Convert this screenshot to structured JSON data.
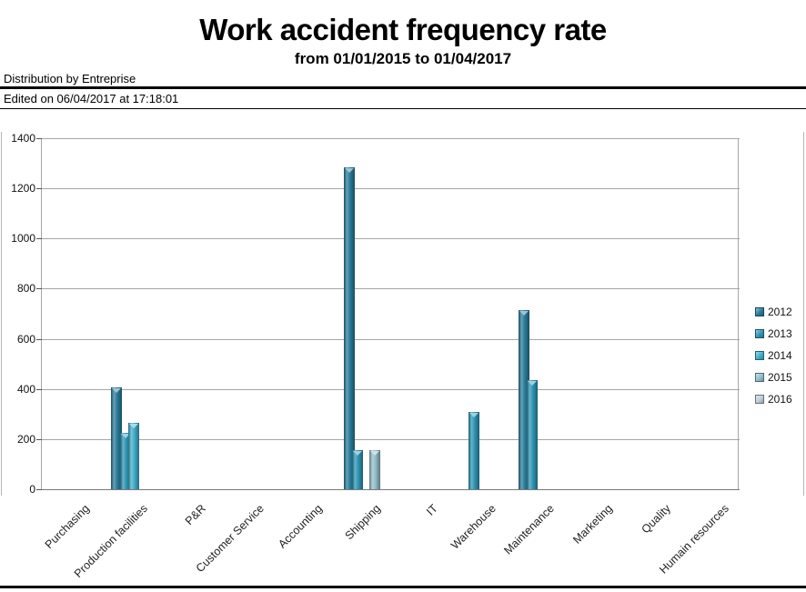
{
  "header": {
    "title": "Work accident frequency rate",
    "subtitle": "from 01/01/2015 to 01/04/2017",
    "distribution_label": "Distribution by Entreprise",
    "edited_label": "Edited on 06/04/2017 at 17:18:01"
  },
  "chart_data": {
    "type": "bar",
    "title": "Work accident frequency rate",
    "subtitle": "from 01/01/2015 to 01/04/2017",
    "categories": [
      "Purchasing",
      "Production facilities",
      "P&R",
      "Customer Service",
      "Accounting",
      "Shipping",
      "IT",
      "Warehouse",
      "Maintenance",
      "Marketing",
      "Quality",
      "Humain resources"
    ],
    "series": [
      {
        "name": "2012",
        "color": "#2a7d9b",
        "values": [
          0,
          405,
          0,
          0,
          0,
          1285,
          0,
          0,
          715,
          0,
          0,
          0
        ]
      },
      {
        "name": "2013",
        "color": "#2e96b5",
        "values": [
          0,
          225,
          0,
          0,
          0,
          155,
          0,
          310,
          435,
          0,
          0,
          0
        ]
      },
      {
        "name": "2014",
        "color": "#41aeca",
        "values": [
          0,
          265,
          0,
          0,
          0,
          0,
          0,
          0,
          0,
          0,
          0,
          0
        ]
      },
      {
        "name": "2015",
        "color": "#93bfcb",
        "values": [
          0,
          0,
          0,
          0,
          0,
          155,
          0,
          0,
          0,
          0,
          0,
          0
        ]
      },
      {
        "name": "2016",
        "color": "#bccfd6",
        "values": [
          0,
          0,
          0,
          0,
          0,
          0,
          0,
          0,
          0,
          0,
          0,
          0
        ]
      }
    ],
    "ylim": [
      0,
      1400
    ],
    "yticks": [
      0,
      200,
      400,
      600,
      800,
      1000,
      1200,
      1400
    ],
    "grid": true,
    "legend_position": "right",
    "xlabel": "",
    "ylabel": ""
  }
}
